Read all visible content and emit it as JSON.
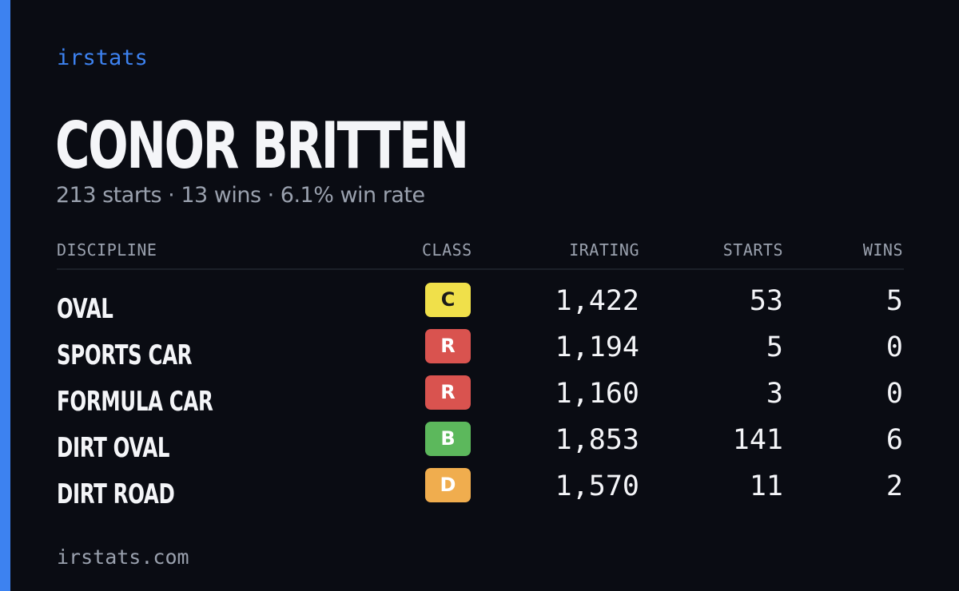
{
  "brand": "irstats",
  "player": {
    "name": "CONOR BRITTEN",
    "summary": "213 starts · 13 wins · 6.1% win rate"
  },
  "table": {
    "headers": {
      "discipline": "DISCIPLINE",
      "class": "CLASS",
      "irating": "IRATING",
      "starts": "STARTS",
      "wins": "WINS"
    },
    "rows": [
      {
        "discipline": "OVAL",
        "class": "C",
        "class_color": "#f0e04a",
        "class_text_color": "#1a1a1a",
        "irating": "1,422",
        "starts": "53",
        "wins": "5"
      },
      {
        "discipline": "SPORTS CAR",
        "class": "R",
        "class_color": "#d9534f",
        "class_text_color": "#ffffff",
        "irating": "1,194",
        "starts": "5",
        "wins": "0"
      },
      {
        "discipline": "FORMULA CAR",
        "class": "R",
        "class_color": "#d9534f",
        "class_text_color": "#ffffff",
        "irating": "1,160",
        "starts": "3",
        "wins": "0"
      },
      {
        "discipline": "DIRT OVAL",
        "class": "B",
        "class_color": "#5cb85c",
        "class_text_color": "#ffffff",
        "irating": "1,853",
        "starts": "141",
        "wins": "6"
      },
      {
        "discipline": "DIRT ROAD",
        "class": "D",
        "class_color": "#f0ad4e",
        "class_text_color": "#ffffff",
        "irating": "1,570",
        "starts": "11",
        "wins": "2"
      }
    ]
  },
  "footer": "irstats.com",
  "colors": {
    "background": "#0a0c13",
    "accent": "#3d82f0",
    "muted_text": "#9aa1ae"
  }
}
